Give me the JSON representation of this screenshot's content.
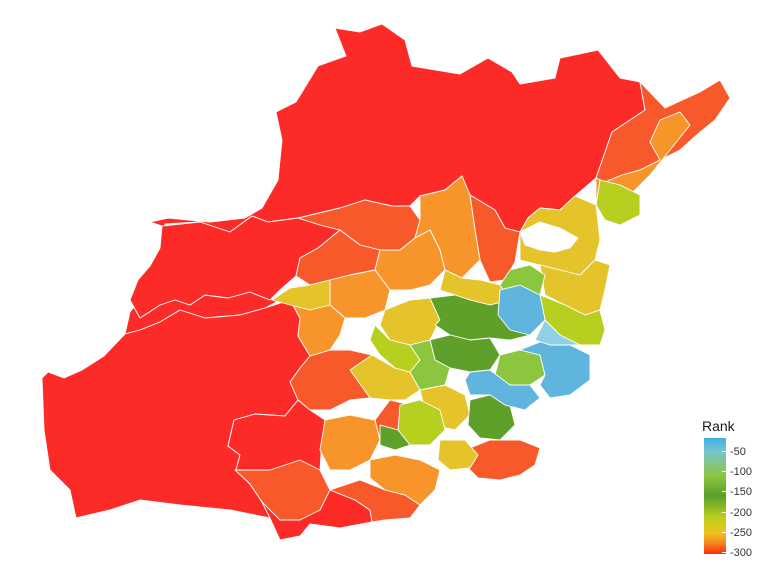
{
  "legend": {
    "title": "Rank",
    "ticks": [
      "-50",
      "-100",
      "-150",
      "-200",
      "-250",
      "-300"
    ]
  },
  "colors": {
    "outer_red": "#fc2b28",
    "orange_red": "#f8592b",
    "orange": "#f7952a",
    "gold": "#e5c32a",
    "yellow_green": "#b7cf1f",
    "green": "#5fa02a",
    "light_green": "#8cc63f",
    "light_blue": "#5fb5dd"
  }
}
